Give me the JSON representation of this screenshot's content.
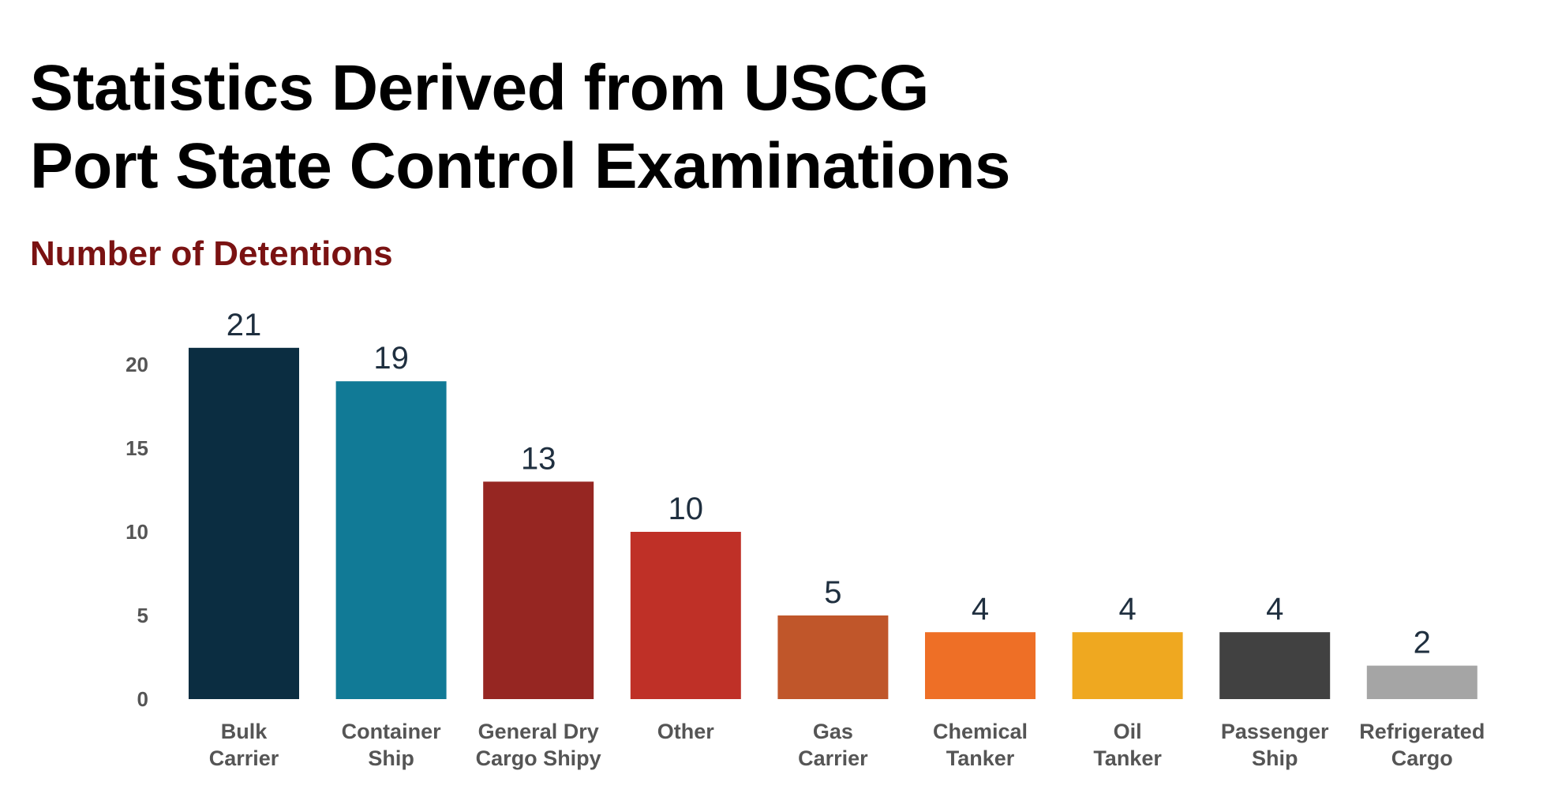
{
  "title_lines": [
    "Statistics Derived from USCG",
    "Port State Control Examinations"
  ],
  "chart_data": {
    "type": "bar",
    "title": "Statistics Derived from USCG Port State Control Examinations",
    "subtitle": "Number of Detentions",
    "xlabel": "",
    "ylabel": "",
    "ylim": [
      0,
      21
    ],
    "yticks": [
      0,
      5,
      10,
      15,
      20
    ],
    "grid": false,
    "legend": "none",
    "categories": [
      [
        "Bulk",
        "Carrier"
      ],
      [
        "Container",
        "Ship"
      ],
      [
        "General Dry",
        "Cargo Shipy"
      ],
      [
        "Other"
      ],
      [
        "Gas",
        "Carrier"
      ],
      [
        "Chemical",
        "Tanker"
      ],
      [
        "Oil",
        "Tanker"
      ],
      [
        "Passenger",
        "Ship"
      ],
      [
        "Refrigerated",
        "Cargo"
      ]
    ],
    "values": [
      21,
      19,
      13,
      10,
      5,
      4,
      4,
      4,
      2
    ],
    "colors": [
      "#0b2d41",
      "#117a96",
      "#962622",
      "#bf3027",
      "#c0562a",
      "#ee6f26",
      "#efa820",
      "#414141",
      "#a5a5a5"
    ]
  }
}
